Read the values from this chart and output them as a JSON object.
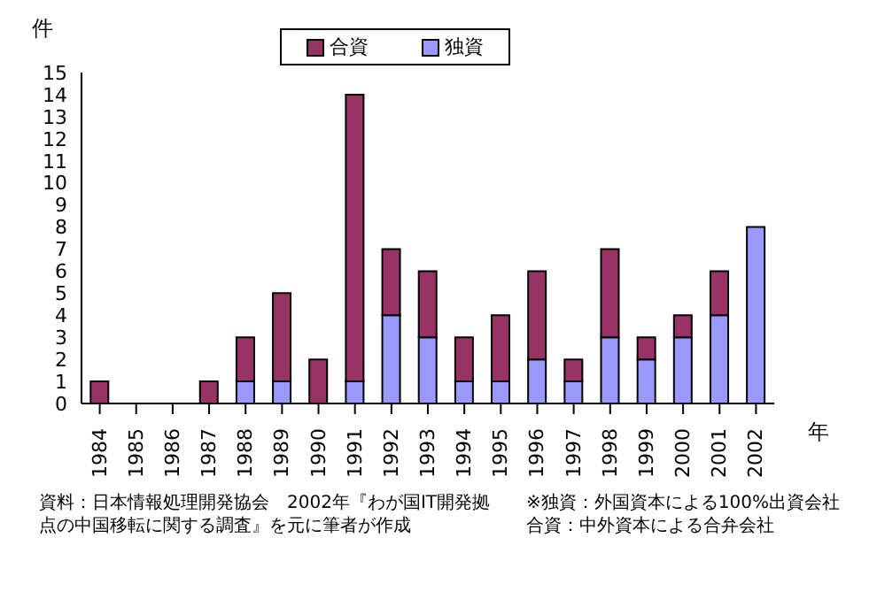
{
  "chart_data": {
    "type": "bar",
    "stacked": true,
    "ylabel": "件",
    "xlabel": "年",
    "categories": [
      "1984",
      "1985",
      "1986",
      "1987",
      "1988",
      "1989",
      "1990",
      "1991",
      "1992",
      "1993",
      "1994",
      "1995",
      "1996",
      "1997",
      "1998",
      "1999",
      "2000",
      "2001",
      "2002"
    ],
    "series": [
      {
        "name": "独資",
        "color": "#9999ff",
        "values": [
          0,
          0,
          0,
          0,
          1,
          1,
          0,
          1,
          4,
          3,
          1,
          1,
          2,
          1,
          3,
          2,
          3,
          4,
          8
        ]
      },
      {
        "name": "合資",
        "color": "#993366",
        "values": [
          1,
          0,
          0,
          1,
          2,
          4,
          2,
          13,
          3,
          3,
          2,
          3,
          4,
          1,
          4,
          1,
          1,
          2,
          0
        ]
      }
    ],
    "ylim": [
      0,
      15
    ],
    "yticks": [
      0,
      1,
      2,
      3,
      4,
      5,
      6,
      7,
      8,
      9,
      10,
      11,
      12,
      13,
      14,
      15
    ],
    "grid": false,
    "legend": "top",
    "annotations": [
      "資料：日本情報処理開発協会　2002年『わが国IT開発拠点の中国移転に関する調査』を元に筆者が作成",
      "※独資：外国資本による100%出資会社",
      "合資：中外資本による合弁会社"
    ]
  }
}
